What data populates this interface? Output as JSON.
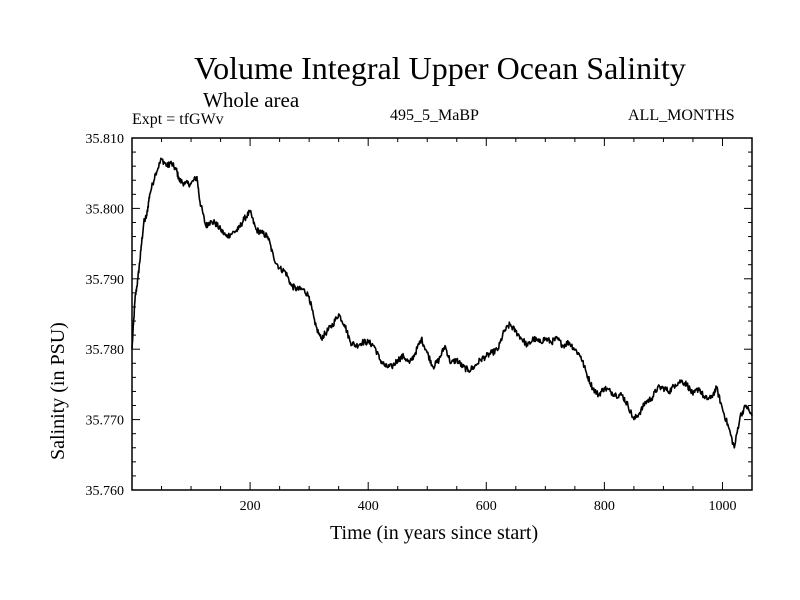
{
  "chart_data": {
    "type": "line",
    "title": "Volume Integral Upper Ocean Salinity",
    "subtitle": "Whole area",
    "experiment_label": "Expt = tfGWv",
    "run_label": "495_5_MaBP",
    "months_label": "ALL_MONTHS",
    "xlabel": "Time (in years since start)",
    "ylabel": "Salinity (in PSU)",
    "xlim": [
      0,
      1050
    ],
    "ylim": [
      35.76,
      35.81
    ],
    "xticks": [
      200,
      400,
      600,
      800,
      1000
    ],
    "xtick_labels": [
      "200",
      "400",
      "600",
      "800",
      "1000"
    ],
    "yticks": [
      35.76,
      35.77,
      35.78,
      35.79,
      35.8,
      35.81
    ],
    "ytick_labels": [
      "35.760",
      "35.770",
      "35.780",
      "35.790",
      "35.800",
      "35.810"
    ],
    "series": [
      {
        "name": "Salinity",
        "color": "#000000",
        "x": [
          0,
          5,
          10,
          15,
          20,
          25,
          30,
          40,
          50,
          60,
          65,
          75,
          80,
          90,
          100,
          110,
          115,
          125,
          130,
          140,
          150,
          160,
          170,
          180,
          190,
          200,
          210,
          220,
          230,
          240,
          250,
          260,
          270,
          280,
          290,
          300,
          310,
          320,
          330,
          340,
          350,
          360,
          370,
          380,
          390,
          400,
          410,
          420,
          430,
          440,
          450,
          460,
          470,
          480,
          490,
          500,
          510,
          520,
          530,
          540,
          550,
          560,
          570,
          580,
          590,
          600,
          610,
          620,
          630,
          640,
          650,
          660,
          670,
          680,
          690,
          700,
          710,
          720,
          730,
          740,
          750,
          760,
          770,
          780,
          790,
          800,
          810,
          820,
          830,
          840,
          850,
          860,
          870,
          880,
          890,
          900,
          910,
          920,
          930,
          940,
          950,
          960,
          970,
          980,
          990,
          1000,
          1010,
          1020,
          1030,
          1040,
          1050
        ],
        "y": [
          35.78,
          35.787,
          35.79,
          35.794,
          35.798,
          35.799,
          35.802,
          35.805,
          35.807,
          35.806,
          35.8065,
          35.8055,
          35.804,
          35.8035,
          35.8035,
          35.8045,
          35.801,
          35.7975,
          35.798,
          35.798,
          35.797,
          35.796,
          35.7965,
          35.797,
          35.7985,
          35.7995,
          35.797,
          35.7965,
          35.796,
          35.793,
          35.7915,
          35.791,
          35.789,
          35.7885,
          35.7885,
          35.7875,
          35.7835,
          35.7815,
          35.7825,
          35.7835,
          35.785,
          35.7835,
          35.781,
          35.7805,
          35.781,
          35.781,
          35.7805,
          35.7785,
          35.7775,
          35.7775,
          35.7785,
          35.779,
          35.778,
          35.7795,
          35.7815,
          35.7795,
          35.7775,
          35.7785,
          35.7805,
          35.778,
          35.7785,
          35.7775,
          35.777,
          35.7775,
          35.7785,
          35.779,
          35.7795,
          35.78,
          35.7825,
          35.7835,
          35.7825,
          35.7815,
          35.7805,
          35.7815,
          35.781,
          35.7815,
          35.781,
          35.7815,
          35.7805,
          35.781,
          35.78,
          35.779,
          35.7765,
          35.7745,
          35.7735,
          35.7745,
          35.774,
          35.7735,
          35.7735,
          35.772,
          35.77,
          35.771,
          35.7725,
          35.773,
          35.7745,
          35.7745,
          35.774,
          35.775,
          35.7755,
          35.775,
          35.7735,
          35.7745,
          35.773,
          35.773,
          35.7745,
          35.7715,
          35.769,
          35.766,
          35.7705,
          35.772,
          35.7705
        ]
      }
    ]
  }
}
